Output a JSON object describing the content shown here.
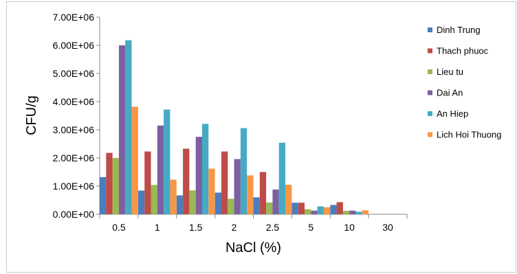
{
  "chart_data": {
    "type": "bar",
    "title": "",
    "xlabel": "NaCl (%)",
    "ylabel": "CFU/g",
    "ylim": [
      0,
      7000000
    ],
    "yticks": [
      "0.00E+00",
      "1.00E+06",
      "2.00E+06",
      "3.00E+06",
      "4.00E+06",
      "5.00E+06",
      "6.00E+06",
      "7.00E+06"
    ],
    "grid": false,
    "legend_position": "right",
    "categories": [
      "0.5",
      "1",
      "1.5",
      "2",
      "2.5",
      "5",
      "10",
      "30"
    ],
    "series": [
      {
        "name": "Dinh Trung",
        "color": "#4a7ebb",
        "values": [
          1320000,
          840000,
          670000,
          770000,
          600000,
          410000,
          330000,
          0
        ]
      },
      {
        "name": "Thach phuoc",
        "color": "#be4b48",
        "values": [
          2180000,
          2230000,
          2330000,
          2230000,
          1500000,
          410000,
          430000,
          0
        ]
      },
      {
        "name": "Lieu tu",
        "color": "#98b954",
        "values": [
          2000000,
          1040000,
          850000,
          550000,
          420000,
          180000,
          120000,
          0
        ]
      },
      {
        "name": "Dai An",
        "color": "#7d60a0",
        "values": [
          6000000,
          3150000,
          2750000,
          1960000,
          880000,
          130000,
          130000,
          0
        ]
      },
      {
        "name": "An Hiep",
        "color": "#46aac5",
        "values": [
          6180000,
          3720000,
          3210000,
          3060000,
          2540000,
          280000,
          90000,
          0
        ]
      },
      {
        "name": "Lich Hoi Thuong",
        "color": "#f79646",
        "values": [
          3820000,
          1230000,
          1620000,
          1380000,
          1050000,
          250000,
          140000,
          0
        ]
      }
    ]
  }
}
